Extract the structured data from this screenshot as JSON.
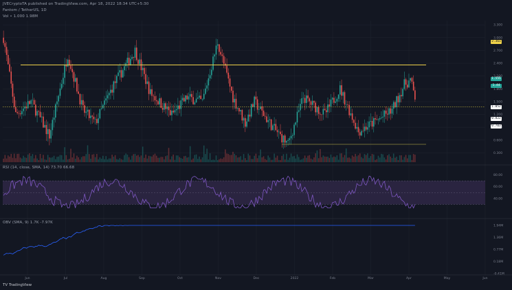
{
  "header": {
    "publish_line": "JVECryptoTA published on TradingView.com, Apr 18, 2022 18:34 UTC+5:30",
    "symbol_line": "Fantom / TetherUS, 1D",
    "volume_line": "Vol • 1.000   1.98M"
  },
  "indicators": {
    "rsi_label": "RSI (14, close, SMA, 14)   73.70  66.68",
    "obv_label": "OBV (SMA, 9)   1.7K  -7.97K"
  },
  "footer": {
    "brand": "TV TradingView"
  },
  "colors": {
    "background": "#131722",
    "grid": "#1e222d",
    "bull": "#26a69a",
    "bear": "#ef5350",
    "resistance": "#f0d34a",
    "dotted_level": "#c9b93a",
    "rsi": "#7e57c2",
    "rsi_band": "#2a2440",
    "obv": "#2962ff"
  },
  "chart_data": [
    {
      "type": "candlestick",
      "title": "Fantom / TetherUS, 1D",
      "x_ticks": [
        "Jun",
        "Jul",
        "Aug",
        "Sep",
        "Oct",
        "Nov",
        "Dec",
        "2022",
        "Feb",
        "Mar",
        "Apr",
        "May",
        "Jun"
      ],
      "y_ticks": [
        3.3,
        3.0,
        2.7,
        2.4,
        2.1,
        1.8,
        1.5,
        1.2,
        0.9,
        0.6,
        0.3
      ],
      "price_badges": [
        {
          "value": "2.361",
          "color": "#f0d34a"
        },
        {
          "value": "1.555",
          "color": "#26a69a"
        },
        {
          "value": "1.44",
          "color": "#26a69a"
        },
        {
          "value": "1.052",
          "color": "#ffffff"
        },
        {
          "value": "0.822",
          "color": "#ffffff"
        },
        {
          "value": "0.703",
          "color": "#ffffff"
        }
      ],
      "levels": {
        "resistance": 2.361,
        "dotted": 1.38
      },
      "ylim": [
        0.05,
        3.4
      ],
      "grid": true
    },
    {
      "type": "line",
      "title": "RSI (14, close, SMA, 14)",
      "y_ticks": [
        80,
        60,
        40
      ],
      "band": [
        30,
        70
      ],
      "ylim": [
        20,
        90
      ]
    },
    {
      "type": "line",
      "title": "OBV (SMA, 9)",
      "y_ticks": [
        "1.94M",
        "1.36M",
        "0.77M",
        "0.18M",
        "-0.41M"
      ]
    }
  ]
}
